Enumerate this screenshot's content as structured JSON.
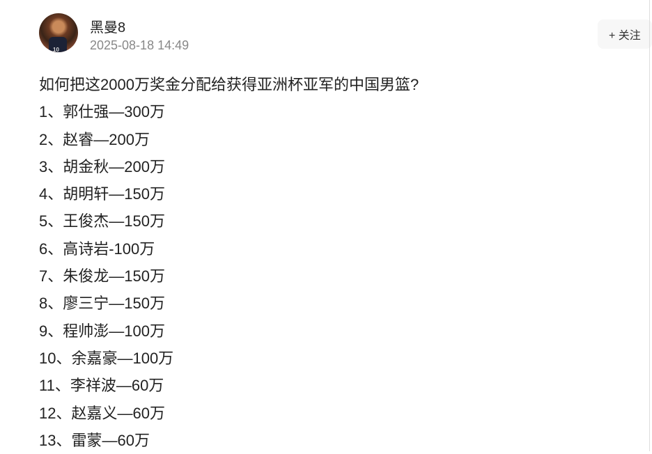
{
  "post": {
    "author": "黑曼8",
    "timestamp": "2025-08-18 14:49",
    "follow_label": "+ 关注",
    "title": "如何把这2000万奖金分配给获得亚洲杯亚军的中国男篮?",
    "items": [
      "1、郭仕强—300万",
      "2、赵睿—200万",
      "3、胡金秋—200万",
      "4、胡明轩—150万",
      "5、王俊杰—150万",
      "6、高诗岩-100万",
      "7、朱俊龙—150万",
      "8、廖三宁—150万",
      "9、程帅澎—100万",
      "10、余嘉豪—100万",
      "11、李祥波—60万",
      "12、赵嘉义—60万",
      "13、雷蒙—60万"
    ]
  }
}
